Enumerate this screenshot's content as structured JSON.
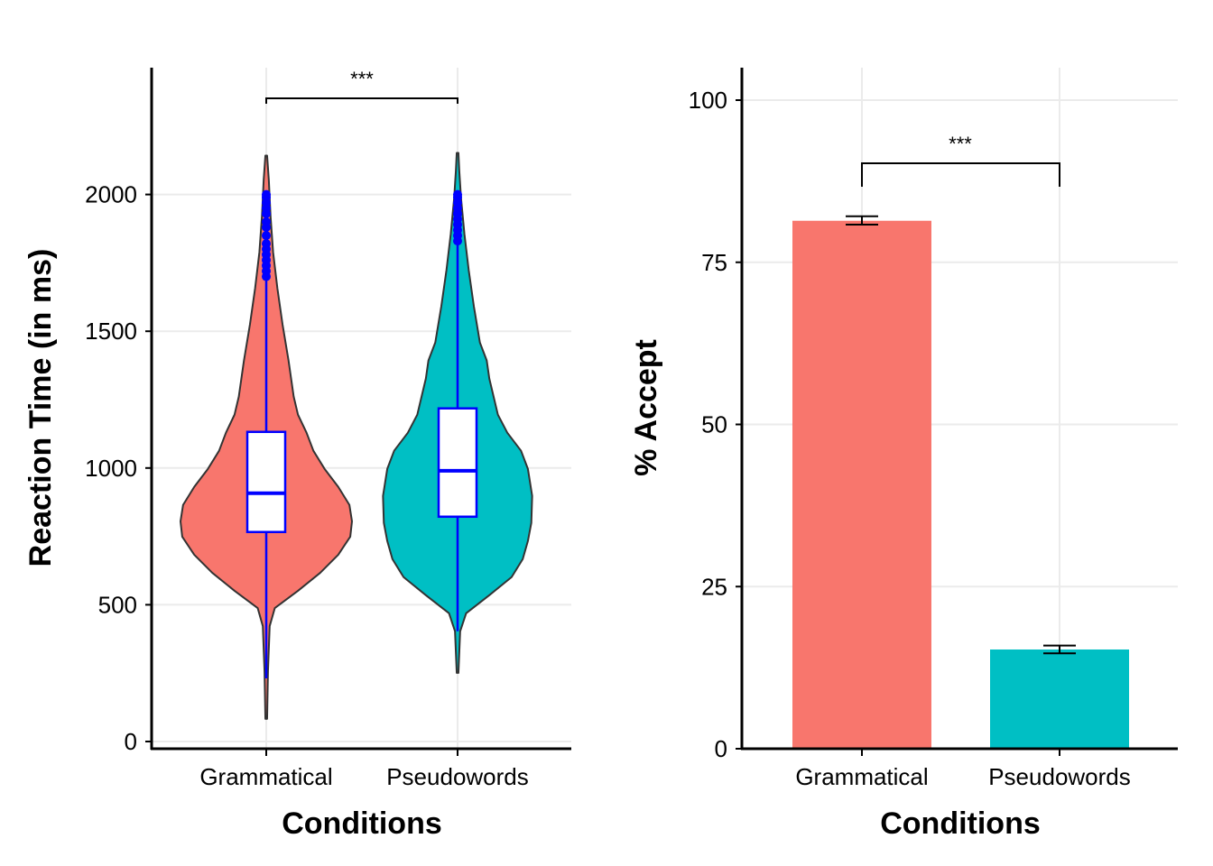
{
  "chart_data": [
    {
      "type": "violin",
      "xlabel": "Conditions",
      "ylabel": "Reaction Time (in ms)",
      "categories": [
        "Grammatical",
        "Pseudowords"
      ],
      "ylim": [
        0,
        2450
      ],
      "yticks": [
        0,
        500,
        1000,
        1500,
        2000
      ],
      "grid": true,
      "colors": [
        "#F8766D",
        "#00BFC4"
      ],
      "box_color": "#0000FF",
      "series": [
        {
          "category": "Grammatical",
          "min": 83,
          "max": 2142,
          "box": {
            "q1": 766,
            "median": 908,
            "q3": 1132,
            "whisker_low": 231,
            "whisker_high": 1690
          },
          "outliers": [
            1700,
            1720,
            1740,
            1760,
            1780,
            1800,
            1820,
            1850,
            1880,
            1900,
            1930,
            1950,
            1970,
            1990,
            2000
          ],
          "density": [
            [
              83,
              0.01
            ],
            [
              257,
              0.02
            ],
            [
              422,
              0.04
            ],
            [
              488,
              0.1
            ],
            [
              551,
              0.37
            ],
            [
              617,
              0.63
            ],
            [
              683,
              0.84
            ],
            [
              749,
              0.98
            ],
            [
              805,
              1.0
            ],
            [
              865,
              0.97
            ],
            [
              931,
              0.84
            ],
            [
              997,
              0.68
            ],
            [
              1063,
              0.55
            ],
            [
              1129,
              0.47
            ],
            [
              1195,
              0.37
            ],
            [
              1261,
              0.32
            ],
            [
              1393,
              0.26
            ],
            [
              1525,
              0.19
            ],
            [
              1657,
              0.13
            ],
            [
              1789,
              0.08
            ],
            [
              1921,
              0.05
            ],
            [
              2053,
              0.03
            ],
            [
              2142,
              0.01
            ]
          ]
        },
        {
          "category": "Pseudowords",
          "min": 251,
          "max": 2152,
          "box": {
            "q1": 822,
            "median": 990,
            "q3": 1218,
            "whisker_low": 403,
            "whisker_high": 1820
          },
          "outliers": [
            1830,
            1850,
            1870,
            1890,
            1910,
            1930,
            1950,
            1970,
            1990,
            2000
          ],
          "density": [
            [
              251,
              0.01
            ],
            [
              403,
              0.03
            ],
            [
              469,
              0.1
            ],
            [
              535,
              0.37
            ],
            [
              601,
              0.63
            ],
            [
              667,
              0.76
            ],
            [
              733,
              0.82
            ],
            [
              799,
              0.86
            ],
            [
              898,
              0.87
            ],
            [
              997,
              0.82
            ],
            [
              1063,
              0.74
            ],
            [
              1129,
              0.58
            ],
            [
              1195,
              0.47
            ],
            [
              1261,
              0.42
            ],
            [
              1327,
              0.37
            ],
            [
              1393,
              0.34
            ],
            [
              1459,
              0.26
            ],
            [
              1591,
              0.19
            ],
            [
              1723,
              0.13
            ],
            [
              1855,
              0.08
            ],
            [
              1987,
              0.04
            ],
            [
              2086,
              0.02
            ],
            [
              2152,
              0.01
            ]
          ]
        }
      ],
      "annotations": [
        {
          "text": "***",
          "between": [
            "Grammatical",
            "Pseudowords"
          ]
        }
      ]
    },
    {
      "type": "bar",
      "xlabel": "Conditions",
      "ylabel": "% Accept",
      "categories": [
        "Grammatical",
        "Pseudowords"
      ],
      "values": [
        81.4,
        15.3
      ],
      "error": [
        [
          80.8,
          82.1
        ],
        [
          14.7,
          15.9
        ]
      ],
      "ylim": [
        0,
        105
      ],
      "yticks": [
        0,
        25,
        50,
        75,
        100
      ],
      "grid": true,
      "colors": [
        "#F8766D",
        "#00BFC4"
      ],
      "annotations": [
        {
          "text": "***",
          "between": [
            "Grammatical",
            "Pseudowords"
          ]
        }
      ]
    }
  ]
}
